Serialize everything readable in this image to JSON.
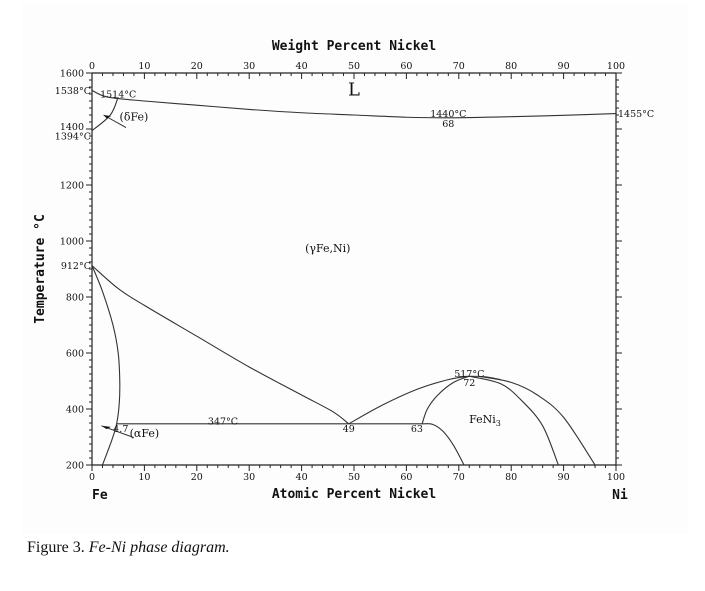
{
  "caption": {
    "prefix": "Figure 3.",
    "title": "Fe-Ni phase diagram."
  },
  "chart_data": {
    "type": "phase_diagram",
    "title": "Fe-Ni phase diagram",
    "xlabel_top": "Weight Percent Nickel",
    "xlabel_bottom": "Atomic Percent Nickel",
    "ylabel": "Temperature °C",
    "xlim": [
      0,
      100
    ],
    "ylim": [
      200,
      1600
    ],
    "x_ticks": [
      0,
      10,
      20,
      30,
      40,
      50,
      60,
      70,
      80,
      90,
      100
    ],
    "x_ticks_top": [
      0,
      10,
      20,
      30,
      40,
      50,
      60,
      70,
      80,
      90,
      100
    ],
    "y_ticks": [
      200,
      400,
      600,
      800,
      1000,
      1200,
      1400,
      1600
    ],
    "components": {
      "left": "Fe",
      "right": "Ni"
    },
    "phases": [
      {
        "label": "L",
        "x": 50,
        "T": 1520
      },
      {
        "label": "(δFe)",
        "x": 8,
        "T": 1430
      },
      {
        "label": "(γFe,Ni)",
        "x": 45,
        "T": 960
      },
      {
        "label": "(αFe)",
        "x": 10,
        "T": 300
      },
      {
        "label": "FeNi3",
        "x": 75,
        "T": 350
      }
    ],
    "annotations": [
      {
        "text": "1538°C",
        "x": 0,
        "T": 1538,
        "side": "left"
      },
      {
        "text": "1514°C",
        "x": 5,
        "T": 1525
      },
      {
        "text": "1394°C",
        "x": 0,
        "T": 1394,
        "side": "left"
      },
      {
        "text": "912°C",
        "x": 0,
        "T": 912,
        "side": "left"
      },
      {
        "text": "1440°C",
        "x": 68,
        "T": 1455
      },
      {
        "text": "68",
        "x": 68,
        "T": 1420
      },
      {
        "text": "1455°C",
        "x": 100,
        "T": 1455,
        "side": "right"
      },
      {
        "text": "347°C",
        "x": 25,
        "T": 357
      },
      {
        "text": "4.7",
        "x": 5.5,
        "T": 330
      },
      {
        "text": "49",
        "x": 49,
        "T": 330
      },
      {
        "text": "63",
        "x": 62,
        "T": 330
      },
      {
        "text": "517°C",
        "x": 72,
        "T": 527
      },
      {
        "text": "72",
        "x": 72,
        "T": 495
      }
    ],
    "curves": [
      {
        "name": "liquidus-solidus",
        "points": [
          [
            0,
            1538
          ],
          [
            3,
            1514
          ],
          [
            10,
            1500
          ],
          [
            20,
            1485
          ],
          [
            30,
            1470
          ],
          [
            40,
            1458
          ],
          [
            50,
            1450
          ],
          [
            60,
            1442
          ],
          [
            68,
            1440
          ],
          [
            80,
            1444
          ],
          [
            90,
            1449
          ],
          [
            100,
            1455
          ]
        ]
      },
      {
        "name": "delta-boundary",
        "points": [
          [
            0,
            1394
          ],
          [
            3.5,
            1450
          ],
          [
            5,
            1514
          ]
        ]
      },
      {
        "name": "gamma-alpha-boundary",
        "points": [
          [
            0,
            912
          ],
          [
            5,
            830
          ],
          [
            10,
            770
          ],
          [
            20,
            660
          ],
          [
            30,
            550
          ],
          [
            40,
            450
          ],
          [
            46,
            390
          ],
          [
            49,
            347
          ]
        ]
      },
      {
        "name": "alpha-solvus",
        "points": [
          [
            0,
            912
          ],
          [
            2,
            820
          ],
          [
            4,
            700
          ],
          [
            5,
            600
          ],
          [
            5.3,
            500
          ],
          [
            5.2,
            420
          ],
          [
            4.7,
            347
          ],
          [
            3.8,
            290
          ],
          [
            2,
            200
          ]
        ]
      },
      {
        "name": "eutectoid-347",
        "points": [
          [
            4.7,
            347
          ],
          [
            63,
            347
          ]
        ]
      },
      {
        "name": "gamma-feni3-left",
        "points": [
          [
            49,
            347
          ],
          [
            55,
            410
          ],
          [
            62,
            470
          ],
          [
            68,
            505
          ],
          [
            72,
            517
          ]
        ]
      },
      {
        "name": "feni3-left-branch",
        "points": [
          [
            63,
            347
          ],
          [
            64,
            400
          ],
          [
            66,
            450
          ],
          [
            69,
            495
          ],
          [
            72,
            517
          ]
        ]
      },
      {
        "name": "feni3-dome-top",
        "points": [
          [
            70,
            515
          ],
          [
            72,
            517
          ],
          [
            75,
            515
          ],
          [
            78,
            505
          ]
        ]
      },
      {
        "name": "feni3-right-inner",
        "points": [
          [
            72,
            517
          ],
          [
            78,
            490
          ],
          [
            82,
            430
          ],
          [
            86,
            340
          ],
          [
            89,
            200
          ]
        ]
      },
      {
        "name": "feni3-right-outer",
        "points": [
          [
            74,
            516
          ],
          [
            80,
            495
          ],
          [
            85,
            450
          ],
          [
            90,
            370
          ],
          [
            96,
            200
          ]
        ]
      },
      {
        "name": "feni3-below-63",
        "points": [
          [
            63,
            347
          ],
          [
            65,
            345
          ],
          [
            67,
            320
          ],
          [
            69,
            270
          ],
          [
            71,
            200
          ]
        ]
      }
    ]
  }
}
